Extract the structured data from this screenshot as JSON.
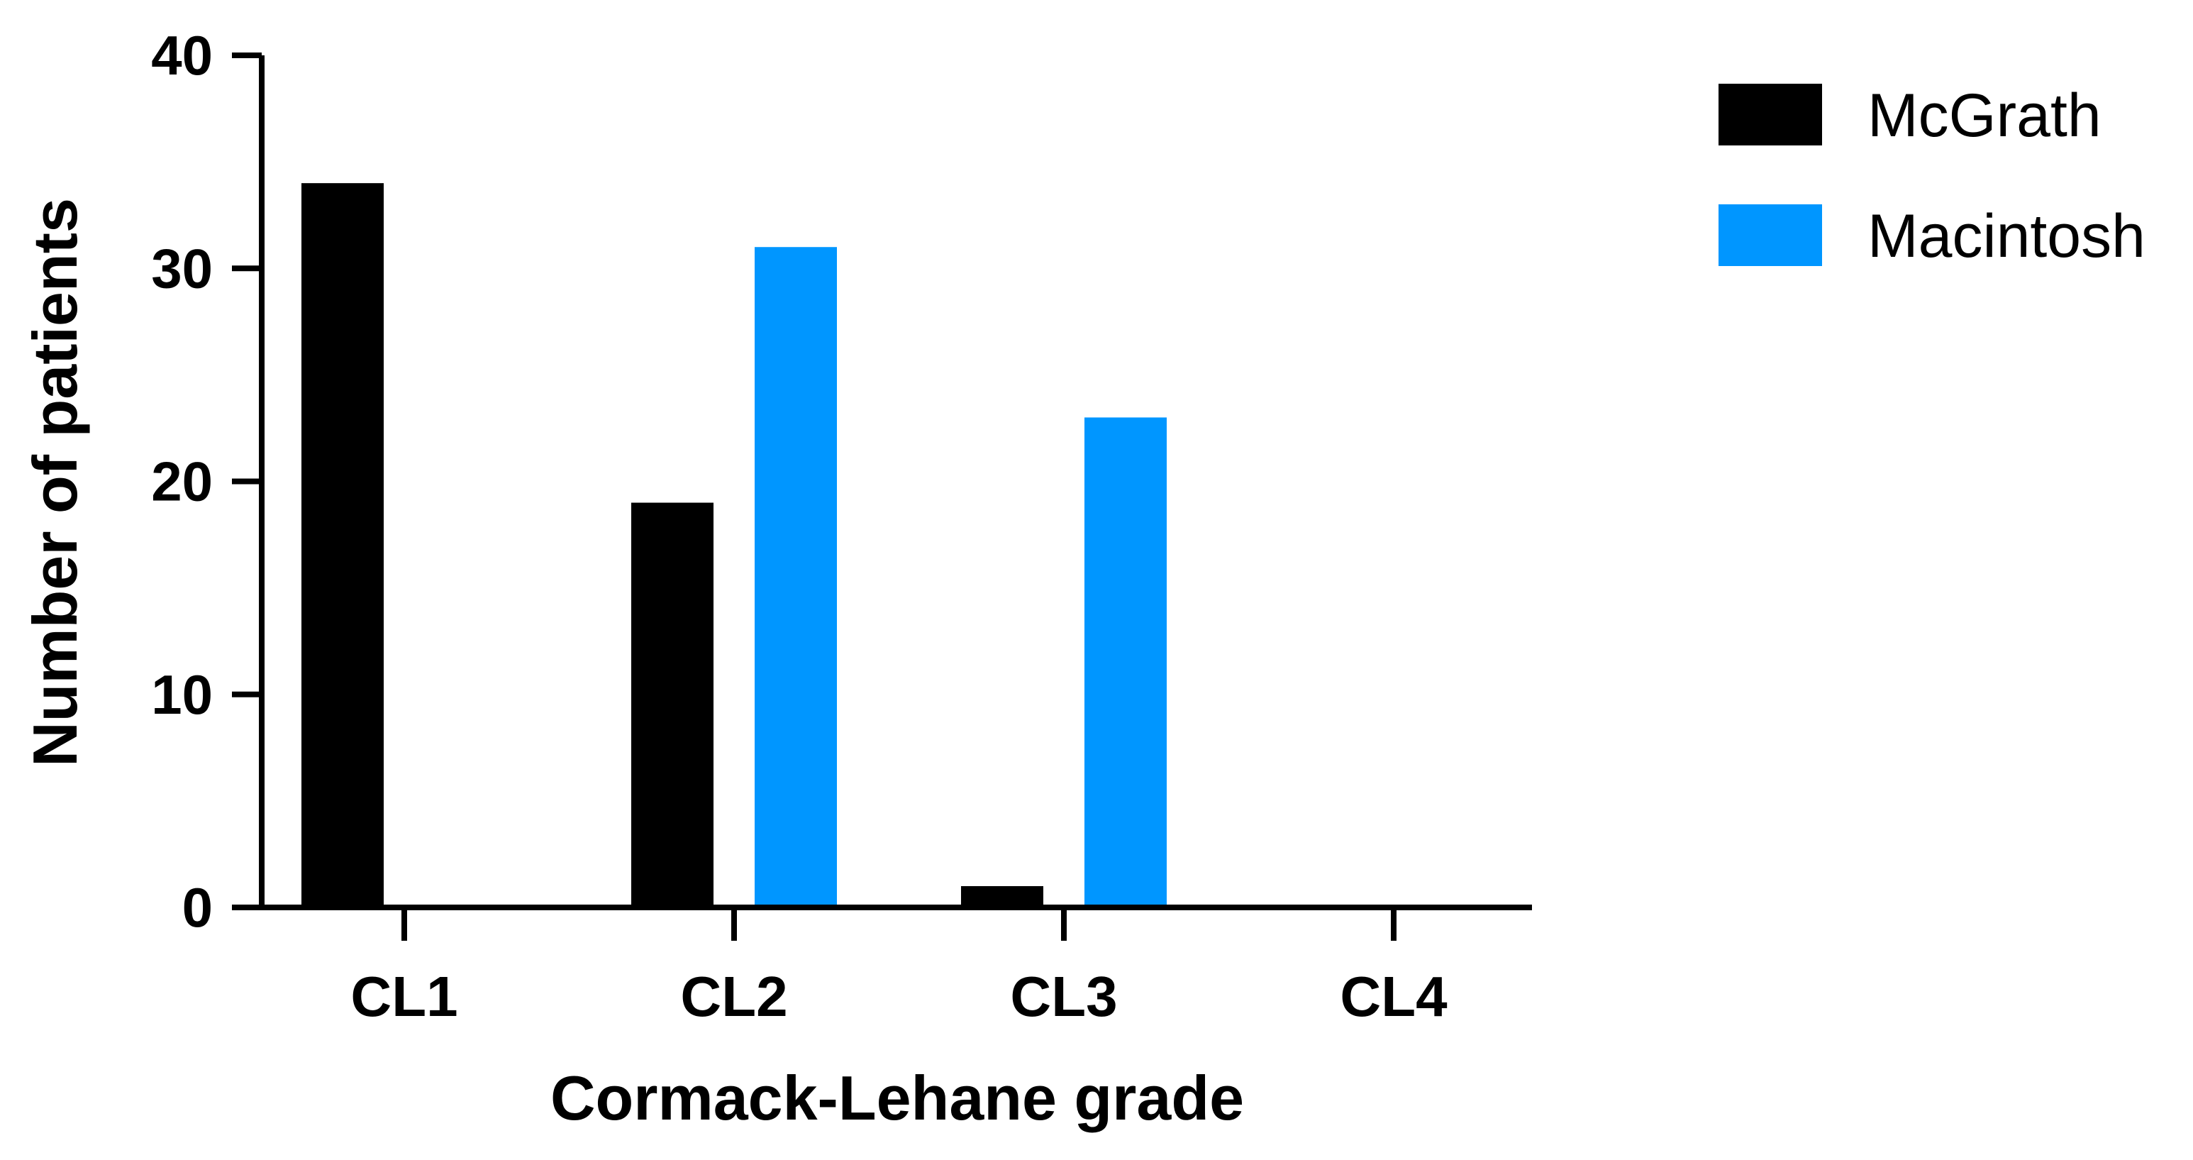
{
  "chart_data": {
    "type": "bar",
    "title": "",
    "xlabel": "Cormack-Lehane grade",
    "ylabel": "Number of patients",
    "categories": [
      "CL1",
      "CL2",
      "CL3",
      "CL4"
    ],
    "ylim": [
      0,
      40
    ],
    "yticks": [
      0,
      10,
      20,
      30,
      40
    ],
    "grid": false,
    "legend_position": "top-right",
    "series": [
      {
        "name": "McGrath",
        "color": "#000000",
        "values": [
          34,
          19,
          1,
          0
        ]
      },
      {
        "name": "Macintosh",
        "color": "#0096FF",
        "values": [
          0,
          31,
          23,
          0
        ]
      }
    ]
  }
}
